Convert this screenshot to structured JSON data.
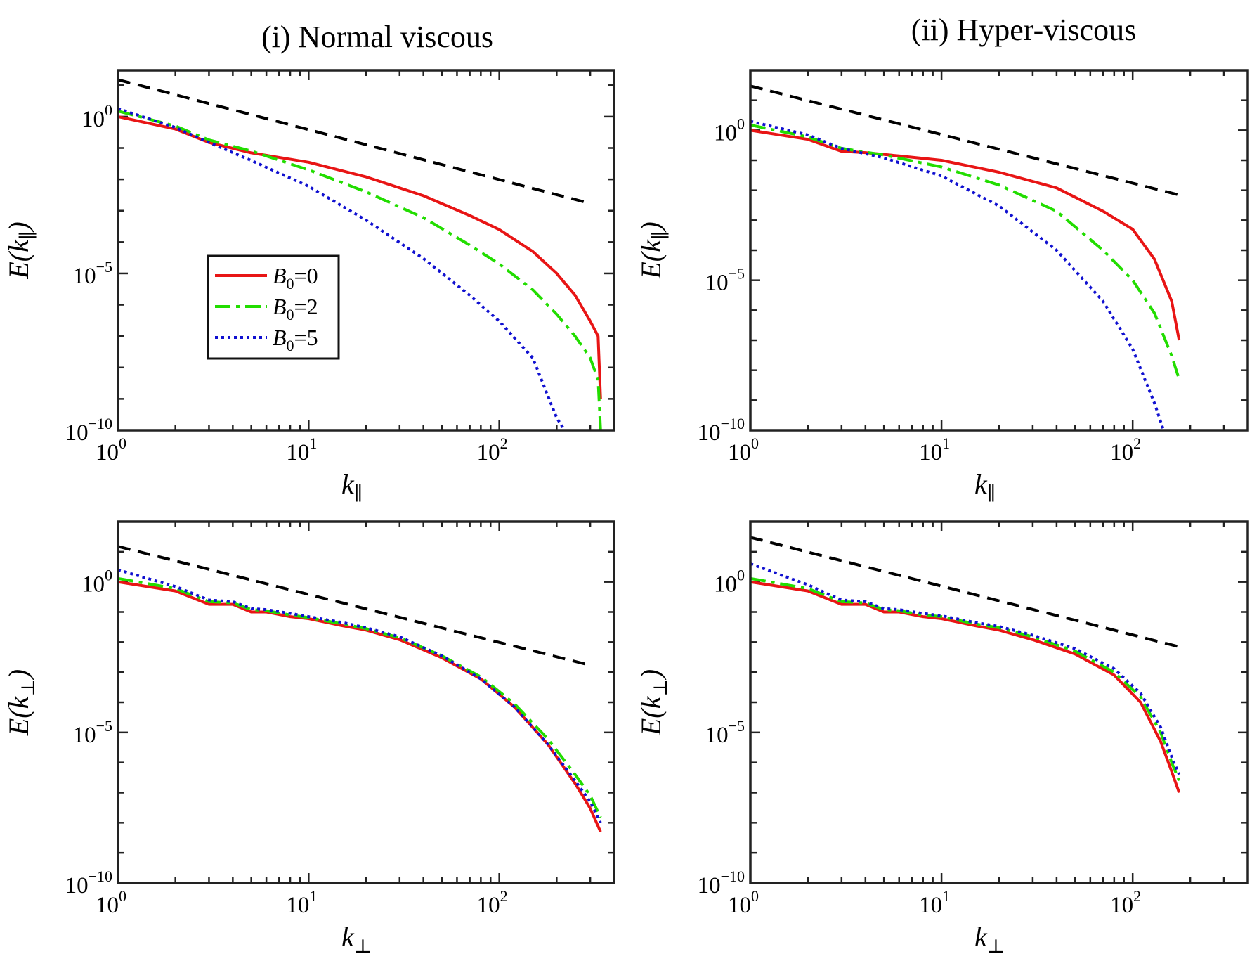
{
  "figure": {
    "column_titles": [
      "(i) Normal viscous",
      "(ii) Hyper-viscous"
    ]
  },
  "colors": {
    "B0_0": "#e81515",
    "B0_2": "#22dd00",
    "B0_5": "#1010d0",
    "reference": "#000000",
    "frame": "#222222"
  },
  "chart_data": [
    {
      "type": "line",
      "panel": "top-left",
      "title": "(i) Normal viscous",
      "xlabel": "k",
      "xlabel_sub": "∥",
      "ylabel": "E(k",
      "ylabel_sub": "∥",
      "ylabel_close": ")",
      "xscale": "log",
      "yscale": "log",
      "xlim": [
        1,
        400
      ],
      "ylim": [
        1e-10,
        30
      ],
      "x_ticks": [
        {
          "base": "10",
          "exp": "0"
        },
        {
          "base": "10",
          "exp": "1"
        },
        {
          "base": "10",
          "exp": "2"
        }
      ],
      "y_ticks": [
        {
          "base": "10",
          "exp": "−10"
        },
        {
          "base": "10",
          "exp": "−5"
        },
        {
          "base": "10",
          "exp": "0"
        }
      ],
      "legend": {
        "position": "center-left",
        "entries": [
          "B0=0",
          "B0=2",
          "B0=5"
        ]
      },
      "series": [
        {
          "name": "B0=0",
          "style": "solid",
          "x": [
            1,
            2,
            3,
            5,
            10,
            20,
            40,
            70,
            100,
            150,
            200,
            250,
            300,
            330,
            340
          ],
          "y": [
            1,
            0.4,
            0.15,
            0.07,
            0.035,
            0.012,
            0.003,
            0.0007,
            0.00025,
            5e-05,
            1e-05,
            2e-06,
            3e-07,
            1e-07,
            1e-09
          ]
        },
        {
          "name": "B0=2",
          "style": "dashdot",
          "x": [
            1,
            2,
            3,
            5,
            10,
            20,
            40,
            70,
            100,
            150,
            200,
            250,
            300,
            330,
            340
          ],
          "y": [
            1.5,
            0.5,
            0.18,
            0.08,
            0.02,
            0.004,
            0.0006,
            8e-05,
            2e-05,
            3e-06,
            5e-07,
            1e-07,
            2e-08,
            4e-09,
            1e-10
          ]
        },
        {
          "name": "B0=5",
          "style": "dotted",
          "x": [
            1,
            2,
            3,
            5,
            10,
            20,
            40,
            70,
            100,
            150,
            200,
            220
          ],
          "y": [
            1.8,
            0.45,
            0.15,
            0.04,
            0.006,
            0.0005,
            3e-05,
            2e-06,
            3e-07,
            2e-08,
            2.5e-10,
            1e-10
          ]
        },
        {
          "name": "reference",
          "style": "dashed",
          "x": [
            1,
            300
          ],
          "y": [
            15,
            0.0017
          ]
        }
      ]
    },
    {
      "type": "line",
      "panel": "top-right",
      "title": "(ii) Hyper-viscous",
      "xlabel": "k",
      "xlabel_sub": "∥",
      "ylabel": "E(k",
      "ylabel_sub": "∥",
      "ylabel_close": ")",
      "xscale": "log",
      "yscale": "log",
      "xlim": [
        1,
        400
      ],
      "ylim": [
        1e-10,
        100
      ],
      "x_ticks": [
        {
          "base": "10",
          "exp": "0"
        },
        {
          "base": "10",
          "exp": "1"
        },
        {
          "base": "10",
          "exp": "2"
        }
      ],
      "y_ticks": [
        {
          "base": "10",
          "exp": "−10"
        },
        {
          "base": "10",
          "exp": "−5"
        },
        {
          "base": "10",
          "exp": "0"
        }
      ],
      "series": [
        {
          "name": "B0=0",
          "style": "solid",
          "x": [
            1,
            2,
            3,
            4,
            6,
            10,
            20,
            40,
            70,
            100,
            130,
            160,
            175
          ],
          "y": [
            1,
            0.5,
            0.2,
            0.18,
            0.14,
            0.1,
            0.04,
            0.012,
            0.002,
            0.0005,
            5e-05,
            2e-06,
            1e-07
          ]
        },
        {
          "name": "B0=2",
          "style": "dashdot",
          "x": [
            1,
            2,
            3,
            5,
            10,
            20,
            40,
            70,
            100,
            130,
            160,
            175
          ],
          "y": [
            1.5,
            0.6,
            0.25,
            0.15,
            0.06,
            0.015,
            0.002,
            0.0001,
            1e-05,
            8e-07,
            3e-08,
            5e-09
          ]
        },
        {
          "name": "B0=5",
          "style": "dotted",
          "x": [
            1,
            2,
            3,
            5,
            10,
            20,
            40,
            70,
            100,
            130,
            145
          ],
          "y": [
            2,
            0.7,
            0.25,
            0.12,
            0.03,
            0.003,
            0.0001,
            2e-06,
            5e-08,
            8e-10,
            1e-10
          ]
        },
        {
          "name": "reference",
          "style": "dashed",
          "x": [
            1,
            175
          ],
          "y": [
            30,
            0.007
          ]
        }
      ]
    },
    {
      "type": "line",
      "panel": "bottom-left",
      "xlabel": "k",
      "xlabel_sub": "⊥",
      "ylabel": "E(k",
      "ylabel_sub": "⊥",
      "ylabel_close": ")",
      "xscale": "log",
      "yscale": "log",
      "xlim": [
        1,
        400
      ],
      "ylim": [
        1e-10,
        100
      ],
      "x_ticks": [
        {
          "base": "10",
          "exp": "0"
        },
        {
          "base": "10",
          "exp": "1"
        },
        {
          "base": "10",
          "exp": "2"
        }
      ],
      "y_ticks": [
        {
          "base": "10",
          "exp": "−10"
        },
        {
          "base": "10",
          "exp": "−5"
        },
        {
          "base": "10",
          "exp": "0"
        }
      ],
      "series": [
        {
          "name": "B0=0",
          "style": "solid",
          "x": [
            1,
            2,
            3,
            4,
            5,
            6,
            8,
            10,
            15,
            20,
            30,
            50,
            80,
            120,
            180,
            250,
            300,
            340
          ],
          "y": [
            1,
            0.5,
            0.18,
            0.18,
            0.1,
            0.1,
            0.07,
            0.06,
            0.035,
            0.025,
            0.012,
            0.003,
            0.0006,
            7e-05,
            4e-06,
            2e-07,
            3e-08,
            5e-09
          ]
        },
        {
          "name": "B0=2",
          "style": "dashdot",
          "x": [
            1,
            2,
            3,
            4,
            5,
            6,
            8,
            10,
            15,
            20,
            30,
            50,
            80,
            120,
            180,
            250,
            300,
            340
          ],
          "y": [
            1.3,
            0.6,
            0.22,
            0.2,
            0.12,
            0.11,
            0.08,
            0.065,
            0.04,
            0.028,
            0.014,
            0.0035,
            0.0007,
            9e-05,
            6e-06,
            4e-07,
            8e-08,
            1.5e-08
          ]
        },
        {
          "name": "B0=5",
          "style": "dotted",
          "x": [
            1,
            2,
            3,
            4,
            5,
            6,
            8,
            10,
            15,
            20,
            30,
            50,
            80,
            120,
            180,
            250,
            300,
            340
          ],
          "y": [
            2.5,
            0.7,
            0.25,
            0.22,
            0.13,
            0.12,
            0.09,
            0.07,
            0.045,
            0.03,
            0.015,
            0.0035,
            0.0006,
            7e-05,
            4e-06,
            2.5e-07,
            5e-08,
            1e-08
          ]
        },
        {
          "name": "reference",
          "style": "dashed",
          "x": [
            1,
            300
          ],
          "y": [
            15,
            0.0017
          ]
        }
      ]
    },
    {
      "type": "line",
      "panel": "bottom-right",
      "xlabel": "k",
      "xlabel_sub": "⊥",
      "ylabel": "E(k",
      "ylabel_sub": "⊥",
      "ylabel_close": ")",
      "xscale": "log",
      "yscale": "log",
      "xlim": [
        1,
        400
      ],
      "ylim": [
        1e-10,
        100
      ],
      "x_ticks": [
        {
          "base": "10",
          "exp": "0"
        },
        {
          "base": "10",
          "exp": "1"
        },
        {
          "base": "10",
          "exp": "2"
        }
      ],
      "y_ticks": [
        {
          "base": "10",
          "exp": "−10"
        },
        {
          "base": "10",
          "exp": "−5"
        },
        {
          "base": "10",
          "exp": "0"
        }
      ],
      "series": [
        {
          "name": "B0=0",
          "style": "solid",
          "x": [
            1,
            2,
            3,
            4,
            5,
            6,
            8,
            10,
            15,
            20,
            30,
            50,
            80,
            110,
            140,
            160,
            175
          ],
          "y": [
            1,
            0.5,
            0.18,
            0.18,
            0.1,
            0.1,
            0.07,
            0.06,
            0.035,
            0.025,
            0.012,
            0.004,
            0.0008,
            0.0001,
            5e-06,
            5e-07,
            1e-07
          ]
        },
        {
          "name": "B0=2",
          "style": "dashdot",
          "x": [
            1,
            2,
            3,
            4,
            5,
            6,
            8,
            10,
            15,
            20,
            30,
            50,
            80,
            110,
            140,
            160,
            175
          ],
          "y": [
            1.3,
            0.6,
            0.22,
            0.2,
            0.12,
            0.11,
            0.08,
            0.07,
            0.04,
            0.03,
            0.015,
            0.005,
            0.001,
            0.00015,
            1e-05,
            1e-06,
            2.5e-07
          ]
        },
        {
          "name": "B0=5",
          "style": "dotted",
          "x": [
            1,
            2,
            3,
            4,
            5,
            6,
            8,
            10,
            15,
            20,
            30,
            50,
            80,
            110,
            140,
            160,
            175
          ],
          "y": [
            4,
            0.8,
            0.25,
            0.22,
            0.13,
            0.12,
            0.09,
            0.075,
            0.045,
            0.033,
            0.017,
            0.006,
            0.0013,
            0.0002,
            1.5e-05,
            1.5e-06,
            4e-07
          ]
        },
        {
          "name": "reference",
          "style": "dashed",
          "x": [
            1,
            175
          ],
          "y": [
            30,
            0.007
          ]
        }
      ]
    }
  ]
}
